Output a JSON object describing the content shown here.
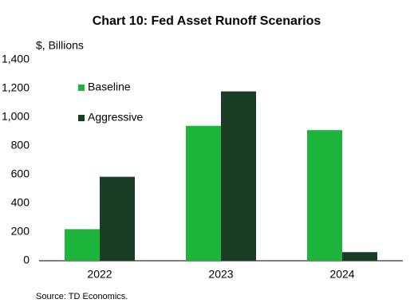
{
  "chart_data": {
    "type": "bar",
    "title": "Chart 10: Fed Asset Runoff Scenarios",
    "y_label": "$, Billions",
    "source": "Source: TD Economics.",
    "categories": [
      "2022",
      "2023",
      "2024"
    ],
    "series": [
      {
        "name": "Baseline",
        "color": "#1cb43a",
        "values": [
          220,
          940,
          910
        ]
      },
      {
        "name": "Aggressive",
        "color": "#1a3e25",
        "values": [
          585,
          1180,
          60
        ]
      }
    ],
    "ylim": [
      0,
      1400
    ],
    "yticks": [
      0,
      200,
      400,
      600,
      800,
      {
        "value": 1000,
        "label": "1,000"
      },
      {
        "value": 1200,
        "label": "1,200"
      },
      {
        "value": 1400,
        "label": "1,400"
      }
    ],
    "legend": "upper-left",
    "grid": false
  }
}
